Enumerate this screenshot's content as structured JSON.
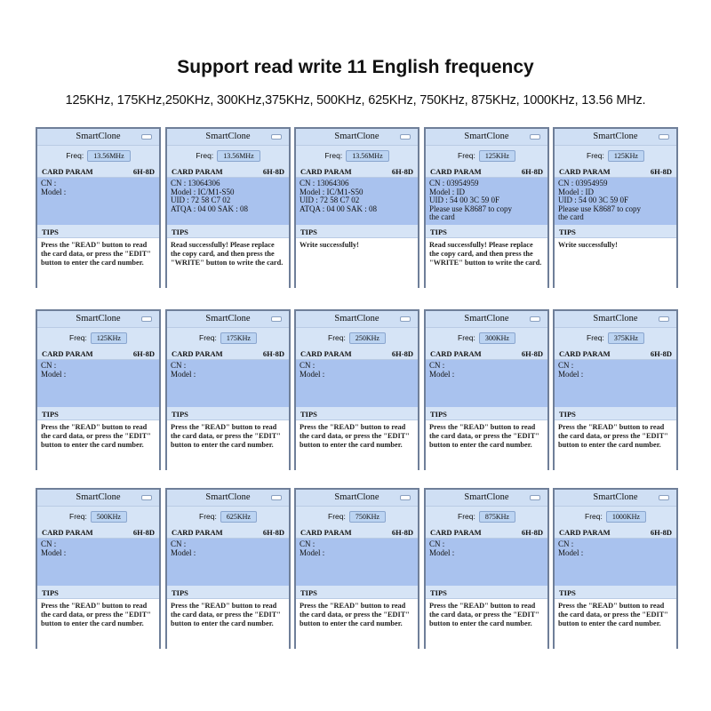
{
  "title": "Support read write 11 English frequency",
  "subtitle": "125KHz, 175KHz,250KHz, 300KHz,375KHz, 500KHz, 625KHz, 750KHz, 875KHz, 1000KHz, 13.56 MHz.",
  "app_name": "SmartClone",
  "freq_label": "Freq:",
  "card_param_label": "CARD PARAM",
  "card_param_code": "6H-8D",
  "tips_label": "TIPS",
  "screens": [
    {
      "freq": "13.56MHz",
      "lines": [
        "CN :",
        "Model :"
      ],
      "tips": "Press the \"READ\"  button to read the card data, or press the \"EDIT\" button to enter the card number."
    },
    {
      "freq": "13.56MHz",
      "lines": [
        "CN : 13064306",
        "Model : IC/M1-S50",
        "UID : 72 58 C7 02",
        "ATQA : 04 00   SAK : 08"
      ],
      "tips": "Read successfully! Please replace the copy card, and then press the \"WRITE\" button to write the card."
    },
    {
      "freq": "13.56MHz",
      "lines": [
        "CN : 13064306",
        "Model : IC/M1-S50",
        "UID : 72 58 C7 02",
        "ATQA : 04 00   SAK : 08"
      ],
      "tips": "Write successfully!"
    },
    {
      "freq": "125KHz",
      "lines": [
        "CN : 03954959",
        "Model : ID",
        "UID : 54 00 3C 59 0F",
        "Please use K8687 to copy",
        "the card"
      ],
      "tips": "Read successfully! Please replace the copy card, and then press the \"WRITE\" button to write the card."
    },
    {
      "freq": "125KHz",
      "lines": [
        "CN : 03954959",
        "Model : ID",
        "UID : 54 00 3C 59 0F",
        "Please use K8687 to copy",
        "the card"
      ],
      "tips": "Write successfully!"
    },
    {
      "freq": "125KHz",
      "lines": [
        "CN :",
        "Model :"
      ],
      "tips": "Press the \"READ\"  button to read the card data, or press the \"EDIT\" button to enter the card number."
    },
    {
      "freq": "175KHz",
      "lines": [
        "CN :",
        "Model :"
      ],
      "tips": "Press the \"READ\"  button to read the card data, or press the \"EDIT\" button to enter the card number."
    },
    {
      "freq": "250KHz",
      "lines": [
        "CN :",
        "Model :"
      ],
      "tips": "Press the \"READ\"  button to read the card data, or press the \"EDIT\" button to enter the card number."
    },
    {
      "freq": "300KHz",
      "lines": [
        "CN :",
        "Model :"
      ],
      "tips": "Press the \"READ\"  button to read the card data, or press the \"EDIT\" button to enter the card number."
    },
    {
      "freq": "375KHz",
      "lines": [
        "CN :",
        "Model :"
      ],
      "tips": "Press the \"READ\"  button to read the card data, or press the \"EDIT\" button to enter the card number."
    },
    {
      "freq": "500KHz",
      "lines": [
        "CN :",
        "Model :"
      ],
      "tips": "Press the \"READ\"  button to read the card data, or press the \"EDIT\" button to enter the card number."
    },
    {
      "freq": "625KHz",
      "lines": [
        "CN :",
        "Model :"
      ],
      "tips": "Press the \"READ\"  button to read the card data, or press the \"EDIT\" button to enter the card number."
    },
    {
      "freq": "750KHz",
      "lines": [
        "CN :",
        "Model :"
      ],
      "tips": "Press the \"READ\"  button to read the card data, or press the \"EDIT\" button to enter the card number."
    },
    {
      "freq": "875KHz",
      "lines": [
        "CN :",
        "Model :"
      ],
      "tips": "Press the \"READ\"  button to read the card data, or press the \"EDIT\" button to enter the card number."
    },
    {
      "freq": "1000KHz",
      "lines": [
        "CN :",
        "Model :"
      ],
      "tips": "Press the \"READ\"  button to read the card data, or press the \"EDIT\" button to enter the card number."
    }
  ]
}
